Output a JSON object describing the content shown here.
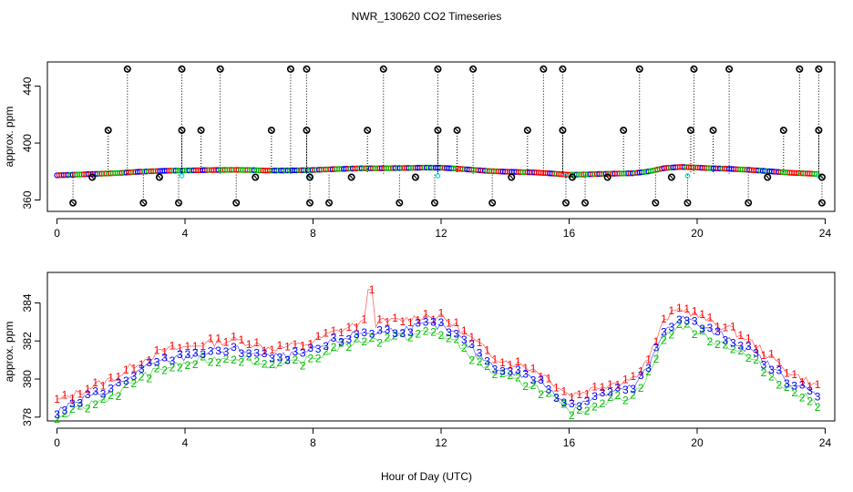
{
  "title": "NWR_130620  CO2 Timeseries",
  "xlabel": "Hour of Day (UTC)",
  "colors": {
    "s1": "#ff0000",
    "s2": "#00bb00",
    "s3": "#0000ff",
    "cyan": "#00dddd",
    "outlier": "#000000"
  },
  "chart_data": [
    {
      "type": "scatter",
      "name": "top-panel",
      "ylabel": "approx. ppm",
      "xlim": [
        -0.3,
        24.3
      ],
      "ylim": [
        352,
        457
      ],
      "xticks": [
        0,
        4,
        8,
        12,
        16,
        20,
        24
      ],
      "yticks": [
        360,
        400,
        440
      ],
      "outliers": {
        "baseline": 378.5,
        "high": [
          [
            2.2,
            452
          ],
          [
            3.9,
            452
          ],
          [
            5.1,
            452
          ],
          [
            7.3,
            452
          ],
          [
            7.8,
            452
          ],
          [
            10.2,
            452
          ],
          [
            11.9,
            452
          ],
          [
            13.0,
            452
          ],
          [
            15.2,
            452
          ],
          [
            15.8,
            452
          ],
          [
            18.2,
            452
          ],
          [
            19.9,
            452
          ],
          [
            21.0,
            452
          ],
          [
            23.2,
            452
          ],
          [
            23.8,
            452
          ],
          [
            1.6,
            409
          ],
          [
            3.9,
            409
          ],
          [
            4.5,
            409
          ],
          [
            6.7,
            409
          ],
          [
            7.8,
            409
          ],
          [
            9.7,
            409
          ],
          [
            11.9,
            409
          ],
          [
            12.5,
            409
          ],
          [
            14.7,
            409
          ],
          [
            15.8,
            409
          ],
          [
            17.7,
            409
          ],
          [
            19.8,
            409
          ],
          [
            20.5,
            409
          ],
          [
            22.7,
            409
          ],
          [
            23.8,
            409
          ]
        ],
        "low": [
          [
            0.5,
            358
          ],
          [
            2.7,
            358
          ],
          [
            3.8,
            358
          ],
          [
            5.6,
            358
          ],
          [
            7.9,
            358
          ],
          [
            8.5,
            358
          ],
          [
            10.7,
            358
          ],
          [
            11.8,
            358
          ],
          [
            13.6,
            358
          ],
          [
            15.9,
            358
          ],
          [
            16.5,
            358
          ],
          [
            18.7,
            358
          ],
          [
            19.7,
            358
          ],
          [
            21.6,
            358
          ],
          [
            23.9,
            358
          ]
        ],
        "lowalt": [
          [
            1.1,
            376
          ],
          [
            3.2,
            376
          ],
          [
            6.2,
            376
          ],
          [
            7.9,
            376
          ],
          [
            9.2,
            376
          ],
          [
            11.2,
            376
          ],
          [
            14.2,
            376
          ],
          [
            16.1,
            376
          ],
          [
            17.2,
            376
          ],
          [
            19.2,
            376
          ],
          [
            22.2,
            376
          ],
          [
            23.9,
            376
          ]
        ]
      }
    },
    {
      "type": "scatter",
      "name": "bottom-panel",
      "ylabel": "approx. ppm",
      "xlim": [
        -0.3,
        24.3
      ],
      "ylim": [
        377.8,
        385.6
      ],
      "xticks": [
        0,
        4,
        8,
        12,
        16,
        20,
        24
      ],
      "yticks": [
        378,
        380,
        382,
        384
      ],
      "series": [
        {
          "name": "1",
          "color": "#ff0000"
        },
        {
          "name": "2",
          "color": "#00bb00"
        },
        {
          "name": "3",
          "color": "#0000ff"
        }
      ],
      "baseline": [
        [
          0,
          378.3
        ],
        [
          0.5,
          378.6
        ],
        [
          1,
          379.0
        ],
        [
          1.5,
          379.3
        ],
        [
          2,
          379.7
        ],
        [
          2.5,
          380.3
        ],
        [
          3,
          380.7
        ],
        [
          3.5,
          381.0
        ],
        [
          4,
          381.1
        ],
        [
          4.5,
          381.3
        ],
        [
          5,
          381.4
        ],
        [
          5.5,
          381.5
        ],
        [
          6,
          381.4
        ],
        [
          6.5,
          381.1
        ],
        [
          7,
          381.1
        ],
        [
          7.5,
          381.2
        ],
        [
          8,
          381.4
        ],
        [
          8.5,
          381.8
        ],
        [
          9,
          382.1
        ],
        [
          9.5,
          382.4
        ],
        [
          10,
          382.4
        ],
        [
          10.5,
          382.5
        ],
        [
          11,
          382.6
        ],
        [
          11.5,
          382.8
        ],
        [
          12,
          382.7
        ],
        [
          12.5,
          382.2
        ],
        [
          13,
          381.5
        ],
        [
          13.5,
          380.8
        ],
        [
          14,
          380.4
        ],
        [
          14.5,
          380.2
        ],
        [
          15,
          379.9
        ],
        [
          15.5,
          379.3
        ],
        [
          16,
          378.6
        ],
        [
          16.5,
          378.8
        ],
        [
          17,
          379.1
        ],
        [
          17.5,
          379.3
        ],
        [
          18,
          379.5
        ],
        [
          18.5,
          380.6
        ],
        [
          19,
          382.6
        ],
        [
          19.5,
          383.2
        ],
        [
          20,
          382.8
        ],
        [
          20.5,
          382.4
        ],
        [
          21,
          382.1
        ],
        [
          21.5,
          381.6
        ],
        [
          22,
          381.0
        ],
        [
          22.5,
          380.3
        ],
        [
          23,
          379.7
        ],
        [
          23.5,
          379.3
        ],
        [
          23.8,
          379.0
        ]
      ],
      "spike": {
        "x": 9.8,
        "y": 384.7
      }
    }
  ]
}
